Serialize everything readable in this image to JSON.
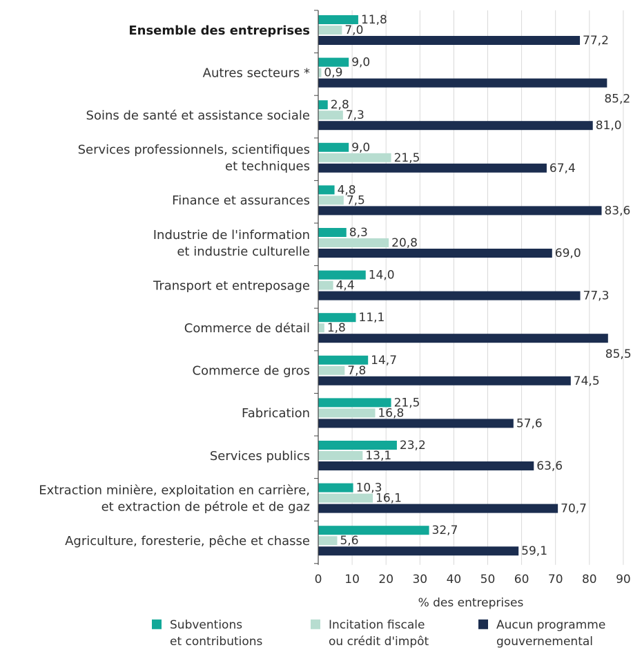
{
  "chart_data": {
    "type": "bar",
    "orientation": "horizontal",
    "categories": [
      [
        "Ensemble des entreprises"
      ],
      [
        "Autres secteurs *"
      ],
      [
        "Soins de santé et assistance sociale"
      ],
      [
        "Services professionnels, scientifiques",
        "et techniques"
      ],
      [
        "Finance et assurances"
      ],
      [
        "Industrie de l'information",
        "et industrie culturelle"
      ],
      [
        "Transport et entreposage"
      ],
      [
        "Commerce de détail"
      ],
      [
        "Commerce de gros"
      ],
      [
        "Fabrication"
      ],
      [
        "Services publics"
      ],
      [
        "Extraction minière, exploitation en carrière,",
        "et extraction de pétrole et de gaz"
      ],
      [
        "Agriculture, foresterie, pêche et chasse"
      ]
    ],
    "bold_categories": [
      0
    ],
    "series": [
      {
        "name": [
          "Subventions",
          "et contributions"
        ],
        "color": "#12a898",
        "values": [
          11.8,
          9.0,
          2.8,
          9.0,
          4.8,
          8.3,
          14.0,
          11.1,
          14.7,
          21.5,
          23.2,
          10.3,
          32.7
        ],
        "labels": [
          "11,8",
          "9,0",
          "2,8",
          "9,0",
          "4,8",
          "8,3",
          "14,0",
          "11,1",
          "14,7",
          "21,5",
          "23,2",
          "10,3",
          "32,7"
        ]
      },
      {
        "name": [
          "Incitation fiscale",
          "ou crédit d'impôt"
        ],
        "color": "#b7ddd0",
        "values": [
          7.0,
          0.9,
          7.3,
          21.5,
          7.5,
          20.8,
          4.4,
          1.8,
          7.8,
          16.8,
          13.1,
          16.1,
          5.6
        ],
        "labels": [
          "7,0",
          "0,9",
          "7,3",
          "21,5",
          "7,5",
          "20,8",
          "4,4",
          "1,8",
          "7,8",
          "16,8",
          "13,1",
          "16,1",
          "5,6"
        ]
      },
      {
        "name": [
          "Aucun programme",
          "gouvernemental"
        ],
        "color": "#1b2d4f",
        "values": [
          77.2,
          85.2,
          81.0,
          67.4,
          83.6,
          69.0,
          77.3,
          85.5,
          74.5,
          57.6,
          63.6,
          70.7,
          59.1
        ],
        "labels": [
          "77,2",
          "85,2",
          "81,0",
          "67,4",
          "83,6",
          "69,0",
          "77,3",
          "85,5",
          "74,5",
          "57,6",
          "63,6",
          "70,7",
          "59,1"
        ]
      }
    ],
    "xlabel": "% des entreprises",
    "xlim": [
      0,
      90
    ],
    "xticks": [
      0,
      10,
      20,
      30,
      40,
      50,
      60,
      70,
      80,
      90
    ],
    "grid": "vertical",
    "legend_position": "bottom"
  }
}
